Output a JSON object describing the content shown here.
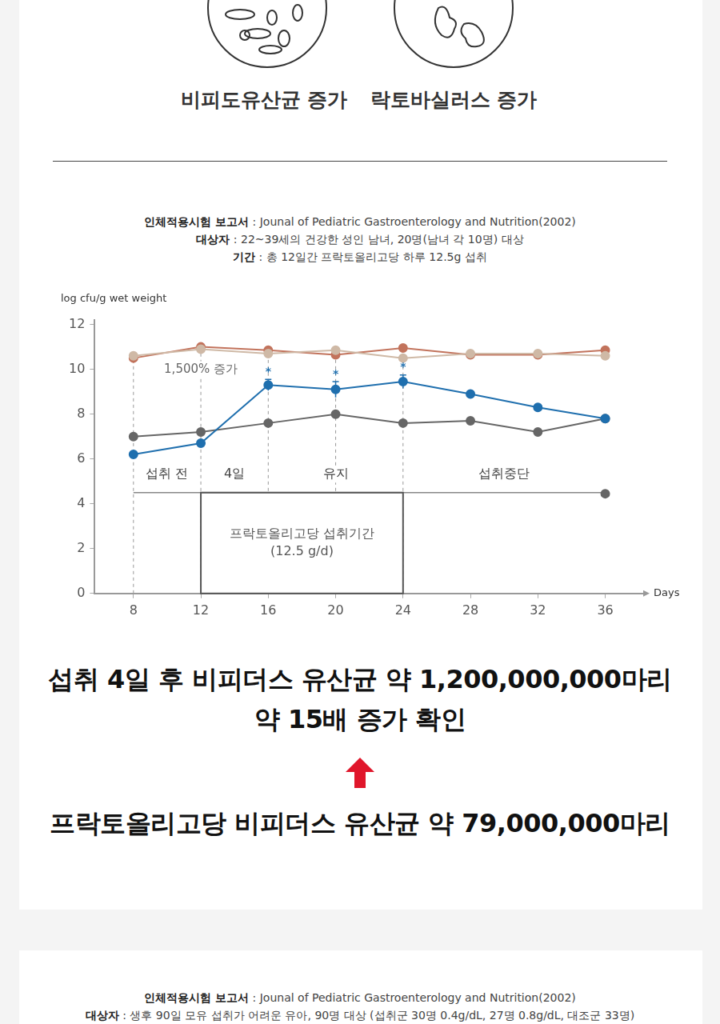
{
  "header": {
    "items": [
      "비피도유산균 증가",
      "락토바실러스 증가"
    ]
  },
  "report": [
    {
      "label": "인체적용시험 보고서",
      "value": ": Jounal of Pediatric Gastroenterology and Nutrition(2002)"
    },
    {
      "label": "대상자",
      "value": ": 22~39세의 건강한 성인 남녀, 20명(남녀 각 10명) 대상"
    },
    {
      "label": "기간",
      "value": ": 총 12일간 프락토올리고당 하루 12.5g 섭취"
    }
  ],
  "chart_data": {
    "type": "line",
    "y_label": "log cfu/g wet weight",
    "x_label": "Days",
    "x": [
      8,
      12,
      16,
      20,
      24,
      28,
      32,
      36
    ],
    "xlim": [
      5.7,
      38.3
    ],
    "xticks": [
      8,
      12,
      16,
      20,
      24,
      28,
      32,
      36
    ],
    "ylim": [
      0,
      12.2
    ],
    "yticks": [
      0,
      2,
      4,
      6,
      8,
      10,
      12
    ],
    "grid": false,
    "series": [
      {
        "color": "#cfb9a6",
        "marker": "circle",
        "line_style": "solid",
        "values": [
          10.6,
          10.9,
          10.7,
          10.85,
          10.5,
          10.7,
          10.7,
          10.6
        ]
      },
      {
        "color": "#c2735c",
        "marker": "circle",
        "line_style": "solid",
        "values": [
          10.5,
          11.0,
          10.85,
          10.65,
          10.95,
          10.65,
          10.65,
          10.85
        ]
      },
      {
        "color": "#1f6fae",
        "marker": "circle",
        "line_style": "solid",
        "values": [
          6.2,
          6.7,
          9.3,
          9.1,
          9.45,
          8.9,
          8.3,
          7.8
        ],
        "errors": [
          null,
          null,
          0.25,
          0.35,
          0.3,
          null,
          null,
          null
        ],
        "point_labels": [
          null,
          null,
          "*",
          "*",
          "*",
          null,
          null,
          null
        ]
      },
      {
        "color": "#666666",
        "marker": "circle",
        "line_style": "solid",
        "values": [
          7.0,
          7.2,
          7.6,
          8.0,
          7.6,
          7.7,
          7.2,
          7.8
        ]
      },
      {
        "color": "#666666",
        "marker": "circle",
        "line_style": "none",
        "values": [
          null,
          null,
          null,
          null,
          null,
          null,
          null,
          4.45
        ]
      }
    ],
    "reference_lines": {
      "x": [
        8,
        12,
        16,
        20,
        24
      ],
      "line_style": "dashed"
    },
    "phases": {
      "y": 4.5,
      "from": 8,
      "to": 36,
      "labels": [
        {
          "x": 10,
          "y": 5.3,
          "text": "섭취 전"
        },
        {
          "x": 14,
          "y": 5.3,
          "text": "4일"
        },
        {
          "x": 20,
          "y": 5.3,
          "text": "유지"
        },
        {
          "x": 30,
          "y": 5.3,
          "text": "섭취중단"
        }
      ]
    },
    "intake_box": {
      "x": [
        12,
        24
      ],
      "y": [
        0,
        4.5
      ],
      "text": [
        "프락토올리고당 섭취기간",
        "(12.5 g/d)"
      ]
    },
    "annotations": [
      {
        "x": 12,
        "y": 10,
        "text": "1,500% 증가"
      }
    ]
  },
  "headline": {
    "result": [
      "섭취 4일 후 비피더스 유산균 약 1,200,000,000마리",
      "약 15배 증가 확인"
    ],
    "baseline": "프락토올리고당 비피더스 유산균 약 79,000,000마리"
  },
  "next_report": [
    {
      "label": "인체적용시험 보고서",
      "value": ": Jounal of Pediatric Gastroenterology and Nutrition(2002)"
    },
    {
      "label": "대상자",
      "value": ": 생후 90일 모유 섭취가 어려운 유아, 90명 대상 (섭취군 30명 0.4g/dL, 27명 0.8g/dL, 대조군 33명)"
    }
  ]
}
